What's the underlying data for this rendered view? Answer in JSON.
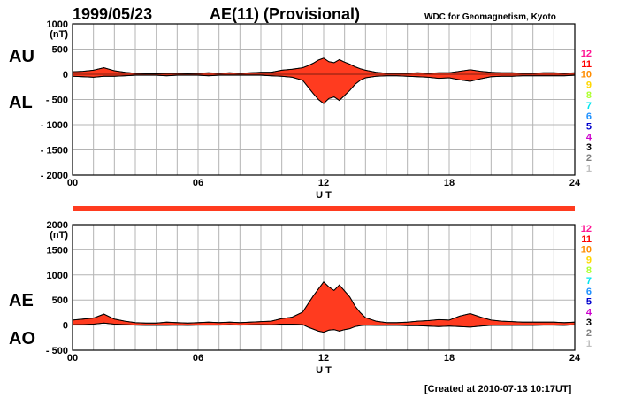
{
  "header": {
    "date": "1999/05/23",
    "title": "AE(11) (Provisional)",
    "source": "WDC for Geomagnetism, Kyoto",
    "created": "[Created at 2010-07-13 10:17UT]"
  },
  "colors": {
    "fill": "#ff3b1f",
    "outline": "#000000",
    "grid": "#b4b4b4",
    "bar": "#ff3b1f"
  },
  "stations": [
    {
      "label": "12",
      "color": "#ff1493"
    },
    {
      "label": "11",
      "color": "#ff0000"
    },
    {
      "label": "10",
      "color": "#ff8c00"
    },
    {
      "label": "9",
      "color": "#ffd700"
    },
    {
      "label": "8",
      "color": "#adff2f"
    },
    {
      "label": "7",
      "color": "#00e5ee"
    },
    {
      "label": "6",
      "color": "#1e90ff"
    },
    {
      "label": "5",
      "color": "#0000cd"
    },
    {
      "label": "4",
      "color": "#cc00cc"
    },
    {
      "label": "3",
      "color": "#000000"
    },
    {
      "label": "2",
      "color": "#7f7f7f"
    },
    {
      "label": "1",
      "color": "#c0c0c0"
    }
  ],
  "chart_data": [
    {
      "type": "area",
      "id": "au-al",
      "series_labels": {
        "upper": "AU",
        "lower": "AL"
      },
      "xlabel": "U T",
      "unit_label": "(nT)",
      "xlim": [
        0,
        24
      ],
      "ylim": [
        -2000,
        1000
      ],
      "xticks": [
        {
          "v": 0,
          "label": "00"
        },
        {
          "v": 6,
          "label": "06"
        },
        {
          "v": 12,
          "label": "12"
        },
        {
          "v": 18,
          "label": "18"
        },
        {
          "v": 24,
          "label": "24"
        }
      ],
      "yticks": [
        {
          "v": 1000,
          "label": "1000"
        },
        {
          "v": 500,
          "label": "500"
        },
        {
          "v": 0,
          "label": "0"
        },
        {
          "v": -500,
          "label": "- 500"
        },
        {
          "v": -1000,
          "label": "- 1000"
        },
        {
          "v": -1500,
          "label": "- 1500"
        },
        {
          "v": -2000,
          "label": "- 2000"
        }
      ],
      "x": [
        0,
        0.5,
        1,
        1.5,
        2,
        2.5,
        3,
        3.5,
        4,
        4.5,
        5,
        5.5,
        6,
        6.5,
        7,
        7.5,
        8,
        8.5,
        9,
        9.5,
        10,
        10.5,
        11,
        11.25,
        11.5,
        11.75,
        12,
        12.25,
        12.5,
        12.75,
        13,
        13.25,
        13.5,
        13.75,
        14,
        14.5,
        15,
        15.5,
        16,
        16.5,
        17,
        17.5,
        18,
        18.5,
        19,
        19.5,
        20,
        20.5,
        21,
        21.5,
        22,
        22.5,
        23,
        23.5,
        24
      ],
      "upper": [
        50,
        60,
        80,
        130,
        70,
        40,
        20,
        10,
        10,
        20,
        20,
        10,
        20,
        30,
        20,
        30,
        20,
        30,
        40,
        40,
        80,
        100,
        130,
        170,
        220,
        280,
        320,
        250,
        230,
        290,
        240,
        200,
        150,
        110,
        80,
        40,
        20,
        20,
        20,
        30,
        20,
        30,
        30,
        60,
        90,
        60,
        40,
        30,
        30,
        20,
        20,
        30,
        30,
        20,
        30
      ],
      "lower": [
        -40,
        -50,
        -60,
        -40,
        -40,
        -30,
        -20,
        -20,
        -20,
        -30,
        -20,
        -20,
        -20,
        -30,
        -20,
        -20,
        -20,
        -20,
        -20,
        -30,
        -40,
        -60,
        -120,
        -250,
        -380,
        -500,
        -580,
        -480,
        -450,
        -520,
        -420,
        -320,
        -200,
        -120,
        -70,
        -40,
        -30,
        -30,
        -40,
        -50,
        -60,
        -80,
        -70,
        -110,
        -140,
        -90,
        -50,
        -40,
        -40,
        -30,
        -30,
        -30,
        -30,
        -30,
        -20
      ]
    },
    {
      "type": "area",
      "id": "ae-ao",
      "series_labels": {
        "upper": "AE",
        "lower": "AO"
      },
      "xlabel": "U T",
      "unit_label": "(nT)",
      "xlim": [
        0,
        24
      ],
      "ylim": [
        -500,
        2000
      ],
      "xticks": [
        {
          "v": 0,
          "label": "00"
        },
        {
          "v": 6,
          "label": "06"
        },
        {
          "v": 12,
          "label": "12"
        },
        {
          "v": 18,
          "label": "18"
        },
        {
          "v": 24,
          "label": "24"
        }
      ],
      "yticks": [
        {
          "v": 2000,
          "label": "2000"
        },
        {
          "v": 1500,
          "label": "1500"
        },
        {
          "v": 1000,
          "label": "1000"
        },
        {
          "v": 500,
          "label": "500"
        },
        {
          "v": 0,
          "label": "0"
        },
        {
          "v": -500,
          "label": "- 500"
        }
      ],
      "x": [
        0,
        0.5,
        1,
        1.5,
        2,
        2.5,
        3,
        3.5,
        4,
        4.5,
        5,
        5.5,
        6,
        6.5,
        7,
        7.5,
        8,
        8.5,
        9,
        9.5,
        10,
        10.5,
        11,
        11.25,
        11.5,
        11.75,
        12,
        12.25,
        12.5,
        12.75,
        13,
        13.25,
        13.5,
        13.75,
        14,
        14.5,
        15,
        15.5,
        16,
        16.5,
        17,
        17.5,
        18,
        18.5,
        19,
        19.5,
        20,
        20.5,
        21,
        21.5,
        22,
        22.5,
        23,
        23.5,
        24
      ],
      "upper": [
        100,
        120,
        140,
        220,
        120,
        80,
        50,
        40,
        40,
        60,
        50,
        40,
        50,
        60,
        50,
        60,
        50,
        60,
        70,
        80,
        130,
        160,
        260,
        420,
        580,
        720,
        860,
        760,
        690,
        800,
        680,
        560,
        380,
        250,
        150,
        80,
        50,
        50,
        60,
        80,
        90,
        110,
        100,
        180,
        230,
        160,
        100,
        80,
        70,
        60,
        60,
        60,
        60,
        50,
        60
      ],
      "lower": [
        5,
        10,
        20,
        40,
        20,
        10,
        0,
        -5,
        -5,
        -5,
        0,
        -5,
        0,
        0,
        0,
        5,
        0,
        5,
        10,
        5,
        20,
        20,
        10,
        -40,
        -80,
        -120,
        -140,
        -100,
        -90,
        -120,
        -90,
        -70,
        -30,
        -10,
        0,
        -5,
        -5,
        -5,
        -10,
        -10,
        -20,
        -30,
        -20,
        -30,
        -40,
        -20,
        -5,
        -5,
        -5,
        -5,
        -5,
        0,
        0,
        -5,
        5
      ]
    }
  ]
}
